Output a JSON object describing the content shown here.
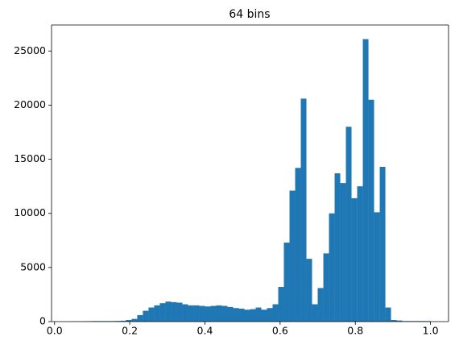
{
  "chart_data": {
    "type": "histogram",
    "title": "64 bins",
    "color": "#1f77b4",
    "bins": [
      0.04,
      0.055,
      0.07,
      0.085,
      0.1,
      0.115,
      0.13,
      0.145,
      0.16,
      0.175,
      0.19,
      0.205,
      0.22,
      0.235,
      0.25,
      0.265,
      0.28,
      0.295,
      0.31,
      0.325,
      0.34,
      0.355,
      0.37,
      0.385,
      0.4,
      0.415,
      0.43,
      0.445,
      0.46,
      0.475,
      0.49,
      0.505,
      0.52,
      0.535,
      0.55,
      0.565,
      0.58,
      0.595,
      0.61,
      0.625,
      0.64,
      0.655,
      0.67,
      0.685,
      0.7,
      0.715,
      0.73,
      0.745,
      0.76,
      0.775,
      0.79,
      0.805,
      0.82,
      0.835,
      0.85,
      0.865,
      0.88,
      0.895,
      0.91,
      0.925,
      0.94,
      0.955,
      0.97,
      0.985,
      1.0
    ],
    "counts": [
      10,
      20,
      30,
      40,
      50,
      50,
      50,
      50,
      60,
      80,
      150,
      250,
      600,
      1000,
      1300,
      1500,
      1700,
      1850,
      1800,
      1750,
      1600,
      1500,
      1500,
      1450,
      1400,
      1450,
      1500,
      1450,
      1350,
      1250,
      1200,
      1100,
      1150,
      1300,
      1100,
      1250,
      1600,
      3200,
      7300,
      12100,
      14200,
      20600,
      5800,
      1600,
      3100,
      6300,
      10000,
      13700,
      12800,
      18000,
      11400,
      12500,
      26100,
      20500,
      10100,
      14300,
      1300,
      150,
      100,
      50,
      50,
      50,
      50,
      50
    ],
    "xlim": [
      -0.008,
      1.048
    ],
    "xticks": [
      {
        "value": 0,
        "label": "0.0"
      },
      0.2,
      0.4,
      0.6,
      0.8,
      {
        "value": 1,
        "label": "1.0"
      }
    ],
    "ylim": [
      0,
      27405
    ],
    "yticks": [
      0,
      5000,
      10000,
      15000,
      20000,
      25000
    ]
  }
}
